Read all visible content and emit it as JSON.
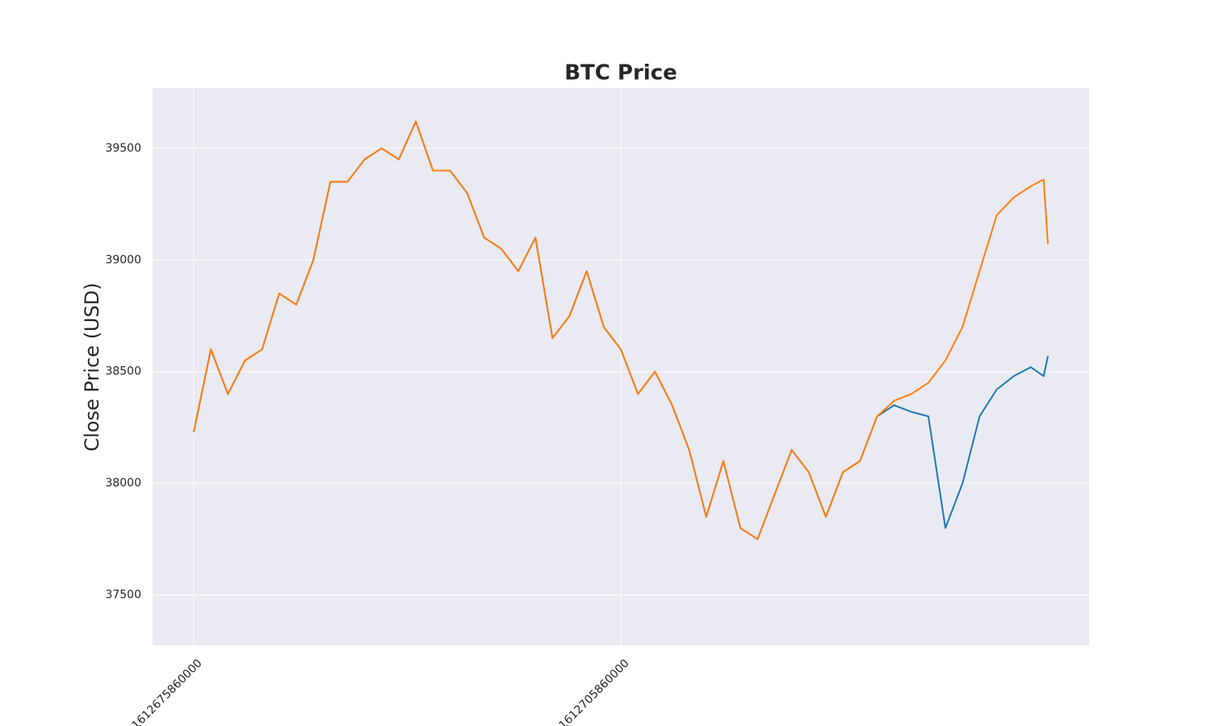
{
  "chart_data": {
    "type": "line",
    "title": "BTC Price",
    "y_label": "Close Price (USD)",
    "x": [
      1612675860000,
      1612677060000,
      1612678260000,
      1612679460000,
      1612680660000,
      1612681860000,
      1612683060000,
      1612684260000,
      1612685460000,
      1612686660000,
      1612687860000,
      1612689060000,
      1612690260000,
      1612691460000,
      1612692660000,
      1612693860000,
      1612695060000,
      1612696260000,
      1612697460000,
      1612698660000,
      1612699860000,
      1612701060000,
      1612702260000,
      1612703460000,
      1612704660000,
      1612705860000,
      1612707060000,
      1612708260000,
      1612709460000,
      1612710660000,
      1612711860000,
      1612713060000,
      1612714260000,
      1612715460000,
      1612716660000,
      1612717860000,
      1612719060000,
      1612720260000,
      1612721460000,
      1612722660000,
      1612723860000,
      1612725060000,
      1612726260000,
      1612727460000,
      1612728660000,
      1612729860000,
      1612731060000,
      1612732260000,
      1612733460000,
      1612734660000,
      1612735560000,
      1612735860000
    ],
    "series": [
      {
        "color": "#1f77b4",
        "values": [
          38230,
          38600,
          38400,
          38550,
          38600,
          38850,
          38800,
          39000,
          39350,
          39350,
          39450,
          39500,
          39450,
          39620,
          39400,
          39400,
          39300,
          39100,
          39050,
          38950,
          39100,
          38650,
          38750,
          38950,
          38700,
          38600,
          38400,
          38500,
          38350,
          38150,
          37850,
          38100,
          37800,
          37750,
          37950,
          38150,
          38050,
          37850,
          38050,
          38100,
          38300,
          38350,
          38320,
          38300,
          37800,
          38000,
          38300,
          38420,
          38480,
          38520,
          38480,
          38570
        ]
      },
      {
        "color": "#ff7f0e",
        "values": [
          38230,
          38600,
          38400,
          38550,
          38600,
          38850,
          38800,
          39000,
          39350,
          39350,
          39450,
          39500,
          39450,
          39620,
          39400,
          39400,
          39300,
          39100,
          39050,
          38950,
          39100,
          38650,
          38750,
          38950,
          38700,
          38600,
          38400,
          38500,
          38350,
          38150,
          37850,
          38100,
          37800,
          37750,
          37950,
          38150,
          38050,
          37850,
          38050,
          38100,
          38300,
          38370,
          38400,
          38450,
          38550,
          38700,
          38950,
          39200,
          39280,
          39330,
          39360,
          39070
        ]
      }
    ],
    "xlim": [
      1612672968000,
      1612738752000
    ],
    "xticks": [
      1612675860000,
      1612705860000
    ],
    "ylim": [
      37275,
      39770
    ],
    "yticks": [
      37500,
      38000,
      38500,
      39000,
      39500
    ],
    "grid": true
  }
}
